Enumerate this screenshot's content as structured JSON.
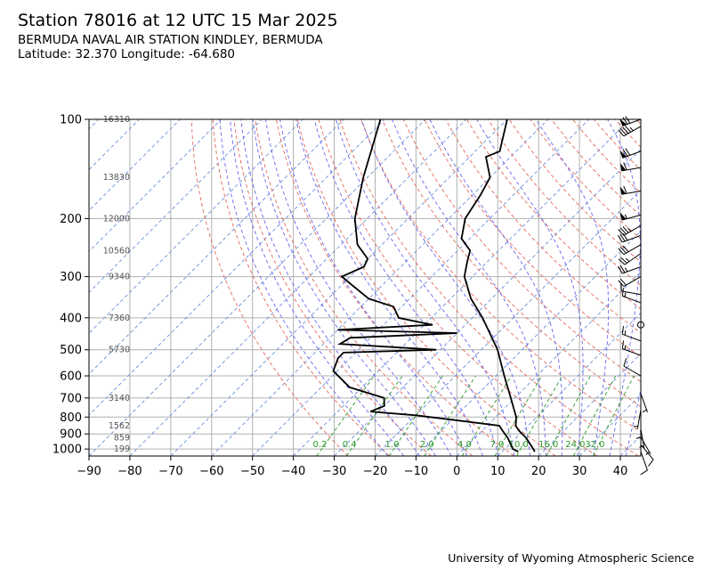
{
  "header": {
    "title": "Station 78016 at 12 UTC 15 Mar 2025",
    "station": "BERMUDA NAVAL AIR STATION KINDLEY, BERMUDA",
    "location": "Latitude: 32.370 Longitude: -64.680"
  },
  "credit": "University of Wyoming Atmospheric Science",
  "chart_data": {
    "type": "skew-t",
    "x_axis": {
      "label": "",
      "range": [
        -90,
        45
      ],
      "ticks": [
        -90,
        -80,
        -70,
        -60,
        -50,
        -40,
        -30,
        -20,
        -10,
        0,
        10,
        20,
        30,
        40
      ]
    },
    "y_axis": {
      "label": "",
      "scale": "log",
      "range": [
        1050,
        100
      ],
      "ticks": [
        100,
        200,
        300,
        400,
        500,
        600,
        700,
        800,
        900,
        1000
      ]
    },
    "grid": true,
    "height_labels": [
      {
        "p": 100,
        "label": "16310"
      },
      {
        "p": 150,
        "label": "13830"
      },
      {
        "p": 200,
        "label": "12000"
      },
      {
        "p": 250,
        "label": "10560"
      },
      {
        "p": 300,
        "label": "9340"
      },
      {
        "p": 400,
        "label": "7360"
      },
      {
        "p": 500,
        "label": "5730"
      },
      {
        "p": 700,
        "label": "3140"
      },
      {
        "p": 850,
        "label": "1562"
      },
      {
        "p": 925,
        "label": "859"
      },
      {
        "p": 1000,
        "label": "199"
      }
    ],
    "mixing_ratio_labels": [
      "0.2",
      "0.4",
      "1.0",
      "2.0",
      "4.0",
      "7.0",
      "10.0",
      "16.0",
      "24.0",
      "32.0"
    ],
    "mixing_ratios": [
      0.2,
      0.4,
      1.0,
      2.0,
      4.0,
      7.0,
      10.0,
      16.0,
      24.0,
      32.0
    ],
    "temperature": [
      {
        "p": 1019,
        "t": 18.0
      },
      {
        "p": 1000,
        "t": 17.0
      },
      {
        "p": 925,
        "t": 12.5
      },
      {
        "p": 880,
        "t": 9.0
      },
      {
        "p": 850,
        "t": 7.0
      },
      {
        "p": 800,
        "t": 5.0
      },
      {
        "p": 700,
        "t": -1.0
      },
      {
        "p": 600,
        "t": -8.0
      },
      {
        "p": 500,
        "t": -16.0
      },
      {
        "p": 400,
        "t": -27.5
      },
      {
        "p": 350,
        "t": -35.0
      },
      {
        "p": 300,
        "t": -42.0
      },
      {
        "p": 270,
        "t": -45.0
      },
      {
        "p": 250,
        "t": -47.0
      },
      {
        "p": 230,
        "t": -52.0
      },
      {
        "p": 200,
        "t": -56.0
      },
      {
        "p": 170,
        "t": -58.0
      },
      {
        "p": 150,
        "t": -60.0
      },
      {
        "p": 130,
        "t": -66.0
      },
      {
        "p": 125,
        "t": -64.0
      },
      {
        "p": 100,
        "t": -70.0
      }
    ],
    "dewpoint": [
      {
        "p": 1019,
        "t": 14.0
      },
      {
        "p": 1000,
        "t": 12.0
      },
      {
        "p": 925,
        "t": 8.0
      },
      {
        "p": 880,
        "t": 5.0
      },
      {
        "p": 850,
        "t": 3.0
      },
      {
        "p": 820,
        "t": -8.0
      },
      {
        "p": 790,
        "t": -20.0
      },
      {
        "p": 770,
        "t": -32.0
      },
      {
        "p": 740,
        "t": -30.0
      },
      {
        "p": 700,
        "t": -32.0
      },
      {
        "p": 650,
        "t": -43.0
      },
      {
        "p": 580,
        "t": -51.0
      },
      {
        "p": 530,
        "t": -53.0
      },
      {
        "p": 510,
        "t": -53.0
      },
      {
        "p": 500,
        "t": -31.0
      },
      {
        "p": 480,
        "t": -56.0
      },
      {
        "p": 460,
        "t": -55.0
      },
      {
        "p": 445,
        "t": -30.0
      },
      {
        "p": 435,
        "t": -60.0
      },
      {
        "p": 420,
        "t": -38.0
      },
      {
        "p": 400,
        "t": -48.0
      },
      {
        "p": 370,
        "t": -52.0
      },
      {
        "p": 350,
        "t": -60.0
      },
      {
        "p": 320,
        "t": -67.0
      },
      {
        "p": 300,
        "t": -72.0
      },
      {
        "p": 280,
        "t": -69.0
      },
      {
        "p": 265,
        "t": -70.0
      },
      {
        "p": 240,
        "t": -76.0
      },
      {
        "p": 200,
        "t": -83.0
      },
      {
        "p": 150,
        "t": -91.0
      },
      {
        "p": 100,
        "t": -101.0
      }
    ],
    "wind_barbs": [
      {
        "p": 100,
        "dir": 250,
        "spd": 70
      },
      {
        "p": 105,
        "dir": 240,
        "spd": 45
      },
      {
        "p": 125,
        "dir": 250,
        "spd": 70
      },
      {
        "p": 140,
        "dir": 260,
        "spd": 60
      },
      {
        "p": 165,
        "dir": 260,
        "spd": 60
      },
      {
        "p": 195,
        "dir": 255,
        "spd": 55
      },
      {
        "p": 210,
        "dir": 240,
        "spd": 35
      },
      {
        "p": 225,
        "dir": 250,
        "spd": 30
      },
      {
        "p": 240,
        "dir": 240,
        "spd": 30
      },
      {
        "p": 255,
        "dir": 235,
        "spd": 25
      },
      {
        "p": 280,
        "dir": 250,
        "spd": 25
      },
      {
        "p": 300,
        "dir": 240,
        "spd": 20
      },
      {
        "p": 340,
        "dir": 280,
        "spd": 10
      },
      {
        "p": 360,
        "dir": 290,
        "spd": 15
      },
      {
        "p": 420,
        "dir": 0,
        "spd": 0
      },
      {
        "p": 470,
        "dir": 290,
        "spd": 15
      },
      {
        "p": 520,
        "dir": 290,
        "spd": 15
      },
      {
        "p": 600,
        "dir": 300,
        "spd": 10
      },
      {
        "p": 680,
        "dir": 160,
        "spd": 5
      },
      {
        "p": 760,
        "dir": 190,
        "spd": 5
      },
      {
        "p": 820,
        "dir": 180,
        "spd": 5
      },
      {
        "p": 870,
        "dir": 170,
        "spd": 5
      },
      {
        "p": 920,
        "dir": 150,
        "spd": 5
      },
      {
        "p": 970,
        "dir": 140,
        "spd": 10
      },
      {
        "p": 1019,
        "dir": 160,
        "spd": 10
      }
    ]
  },
  "colors": {
    "grid": "#b0b0b0",
    "isotherm": "#6a8fd8",
    "dry_adiabat": "#e2685a",
    "moist_adiabat": "#6666ee",
    "mixing_ratio": "#2a9a2a",
    "sounding": "#000000"
  }
}
